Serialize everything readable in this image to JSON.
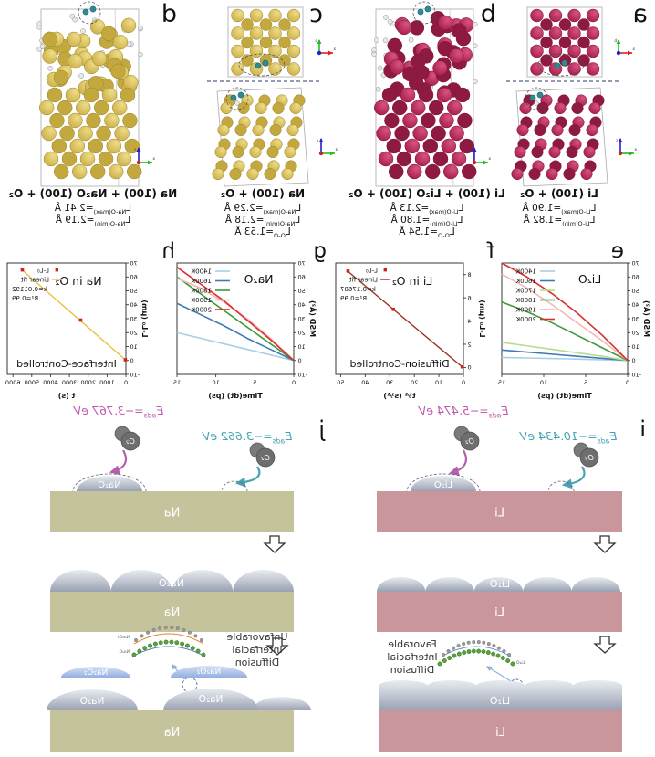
{
  "figure_meta": {
    "orientation": "mirrored-horizontally",
    "background": "#ffffff"
  },
  "panel_labels": {
    "a": "a",
    "b": "b",
    "c": "c",
    "d": "d",
    "e": "e",
    "f": "f",
    "g": "g",
    "h": "h",
    "i": "i",
    "j": "j"
  },
  "colors": {
    "li_atom_light": "#d9537f",
    "li_atom_dark": "#a61e4d",
    "li_atom_deep": "#8f1a41",
    "li_atom_stroke": "#7d163a",
    "na_atom_light": "#eedc86",
    "na_atom_dark": "#cdb14a",
    "na_atom_deep": "#c3a83e",
    "na_atom_stroke": "#9a8530",
    "oxygen_small": "#e8e8e8",
    "oxygen_small_stroke": "#8f8f8f",
    "adsorbed_o2": "#2e8b93",
    "adsorbed_o2_stroke": "#1d6b72",
    "eads_oxide_text": "#c05cae",
    "eads_metal_text": "#45a3b4",
    "li_slab": "#c9979b",
    "na_slab": "#c5c39b",
    "mound_top": "#e9ecf1",
    "mound_bottom": "#99a1b2",
    "cap_top": "#d7e3f6",
    "cap_bottom": "#93aede",
    "arrow_magenta": "#b35fae",
    "arrow_teal": "#4aa3b3",
    "thin_arrow_blue": "#8fb0d6",
    "inset_orange": "#e08030",
    "inset_blue": "#4a7fc0",
    "inset_green": "#58a33a",
    "inset_gray": "#9a9a9a",
    "o2_molecule": "#6e6e6e"
  },
  "structures": [
    {
      "id": "a",
      "type": "two-view",
      "metal": "li",
      "title": "Li (100) + O₂",
      "bond_lines": [
        {
          "base": "L",
          "sub": "Li-O(max)",
          "rest": "=1.90 Å"
        },
        {
          "base": "L",
          "sub": "Li-O(min)",
          "rest": "=1.82 Å"
        }
      ]
    },
    {
      "id": "b",
      "type": "slab",
      "metal": "li",
      "title": "Li (100) + Li₂O (100) + O₂",
      "bond_lines": [
        {
          "base": "L",
          "sub": "Li-O(max)",
          "rest": "=2.13 Å"
        },
        {
          "base": "L",
          "sub": "Li-O(min)",
          "rest": "=1.80 Å"
        },
        {
          "base": "L",
          "sub": "O-O",
          "rest": "=1.54 Å"
        }
      ]
    },
    {
      "id": "c",
      "type": "two-view",
      "metal": "na",
      "title": "Na (100) + O₂",
      "bond_lines": [
        {
          "base": "L",
          "sub": "Na-O(max)",
          "rest": "=2.29 Å"
        },
        {
          "base": "L",
          "sub": "Na-O(min)",
          "rest": "=2.18 Å"
        },
        {
          "base": "L",
          "sub": "O-O",
          "rest": "=1.53 Å"
        }
      ]
    },
    {
      "id": "d",
      "type": "slab",
      "metal": "na",
      "title": "Na (100) + Na₂O (100) + O₂",
      "bond_lines": [
        {
          "base": "L",
          "sub": "Na-O(max)",
          "rest": "=2.41 Å"
        },
        {
          "base": "L",
          "sub": "Na-O(min)",
          "rest": "=2.19 Å"
        }
      ]
    }
  ],
  "chart_data": [
    {
      "panel": "e",
      "type": "line",
      "title": "Li₂O",
      "xlabel": "Time(dt) (ps)",
      "ylabel": "MSD (Å²)",
      "xlim": [
        0,
        15
      ],
      "ylim": [
        -10,
        70
      ],
      "xticks": [
        0,
        5,
        10,
        15
      ],
      "yticks": [
        -10,
        0,
        10,
        20,
        30,
        40,
        50,
        60,
        70
      ],
      "grid": false,
      "legend_position": "top-right",
      "x": [
        0,
        3,
        6,
        9,
        12,
        15
      ],
      "series": [
        {
          "name": "1400K",
          "color": "#a8cee5",
          "values": [
            0,
            0.5,
            1.0,
            1.4,
            1.8,
            2.2
          ]
        },
        {
          "name": "1600K",
          "color": "#3f7ab5",
          "values": [
            0,
            1.5,
            3.0,
            4.5,
            6.0,
            7.5
          ]
        },
        {
          "name": "1700K",
          "color": "#b5dd8f",
          "values": [
            0,
            3.0,
            5.5,
            8.0,
            10.5,
            13.0
          ]
        },
        {
          "name": "1800K",
          "color": "#3c9a3c",
          "values": [
            0,
            9,
            18,
            27,
            35,
            42
          ]
        },
        {
          "name": "1900K",
          "color": "#f5b8b1",
          "values": [
            0,
            14,
            27,
            40,
            52,
            62
          ]
        },
        {
          "name": "2000K",
          "color": "#d92f2f",
          "values": [
            0,
            18,
            34,
            48,
            60,
            70
          ]
        }
      ]
    },
    {
      "panel": "f",
      "type": "scatter-fit",
      "title": "Li in O₂",
      "annotation": "Diffusion-Controlled",
      "xlabel": "t¹⁄² (s¹⁄²)",
      "ylabel": "L-L₀ (µm)",
      "xlim": [
        0,
        52
      ],
      "ylim": [
        -0.6,
        9
      ],
      "xticks": [
        0,
        10,
        20,
        30,
        40,
        50
      ],
      "yticks": [
        0,
        2,
        4,
        6,
        8
      ],
      "points": [
        [
          0.5,
          0.05
        ],
        [
          28.5,
          5.0
        ],
        [
          47,
          8.3
        ]
      ],
      "fit": {
        "x1": 0.5,
        "y1": 0.05,
        "x2": 47.5,
        "y2": 8.36,
        "color": "#993322"
      },
      "marker_color": "#cc2222",
      "legend_point_label": "L-L₀",
      "fit_label": "Linear fit",
      "k_text": "k=0.17607",
      "r2_text": "R²=0.99"
    },
    {
      "panel": "g",
      "type": "line",
      "title": "Na₂O",
      "xlabel": "Time(dt) (ps)",
      "ylabel": "MSD (Å²)",
      "xlim": [
        0,
        15
      ],
      "ylim": [
        -10,
        70
      ],
      "xticks": [
        0,
        5,
        10,
        15
      ],
      "yticks": [
        -10,
        0,
        10,
        20,
        30,
        40,
        50,
        60,
        70
      ],
      "grid": false,
      "legend_position": "top-right",
      "x": [
        0,
        3,
        6,
        9,
        12,
        15
      ],
      "series": [
        {
          "name": "1400K",
          "color": "#a8cee5",
          "values": [
            0,
            4,
            8,
            12,
            16,
            20
          ]
        },
        {
          "name": "1600K",
          "color": "#3f7ab5",
          "values": [
            0,
            8,
            16,
            25,
            33,
            41
          ]
        },
        {
          "name": "1800K",
          "color": "#3c9a3c",
          "values": [
            0,
            12,
            24,
            36,
            48,
            60
          ]
        },
        {
          "name": "1900K",
          "color": "#f5b8b1",
          "values": [
            0,
            16,
            30,
            42,
            52,
            59
          ]
        },
        {
          "name": "2000K",
          "color": "#d92f2f",
          "values": [
            0,
            15,
            29,
            43,
            55,
            67
          ]
        }
      ]
    },
    {
      "panel": "h",
      "type": "scatter-fit",
      "title": "Na in O₂",
      "annotation": "Interface-Controlled",
      "xlabel": "t (s)",
      "ylabel": "L-L₀ (µm)",
      "xlim": [
        0,
        6300
      ],
      "ylim": [
        -10,
        70
      ],
      "xticks": [
        0,
        1000,
        2000,
        3000,
        4000,
        5000,
        6000
      ],
      "yticks": [
        -10,
        0,
        10,
        20,
        30,
        40,
        50,
        60,
        70
      ],
      "points": [
        [
          30,
          0.5
        ],
        [
          2400,
          29
        ],
        [
          5500,
          65
        ]
      ],
      "fit": {
        "x1": 30,
        "y1": 0.5,
        "x2": 5600,
        "y2": 66,
        "color": "#e6c33c"
      },
      "marker_color": "#cc2222",
      "legend_point_label": "L-L₀",
      "fit_label": "Linear fit",
      "k_text": "k=0.01192",
      "r2_text": "R²=0.99"
    }
  ],
  "eads_labels": [
    {
      "id": "f-oxide",
      "base": "E",
      "sub": "ads",
      "rest": "=−5.474 eV",
      "role": "oxide"
    },
    {
      "id": "h-oxide",
      "base": "E",
      "sub": "ads",
      "rest": "=−3.767 eV",
      "role": "oxide"
    },
    {
      "id": "i-metal",
      "base": "E",
      "sub": "ads",
      "rest": "=−10.434 eV",
      "role": "metal"
    },
    {
      "id": "j-metal",
      "base": "E",
      "sub": "ads",
      "rest": "=−3.662 eV",
      "role": "metal"
    }
  ],
  "schematics": [
    {
      "id": "i",
      "metal_label": "Li",
      "oxide_label": "Li₂O",
      "molecule_label": "O₂",
      "diffusion_caption": [
        "Favorable",
        "Interfacial",
        "Diffusion"
      ],
      "inset_labels": [
        "Li₂O"
      ]
    },
    {
      "id": "j",
      "metal_label": "Na",
      "oxide_label": "Na₂O",
      "peroxide_label": "Na₂O₂",
      "molecule_label": "O₂",
      "diffusion_caption": [
        "Unfavorable",
        "Interfacial",
        "Diffusion"
      ],
      "inset_labels": [
        "Na₂O₂",
        "Na₂O"
      ]
    }
  ]
}
